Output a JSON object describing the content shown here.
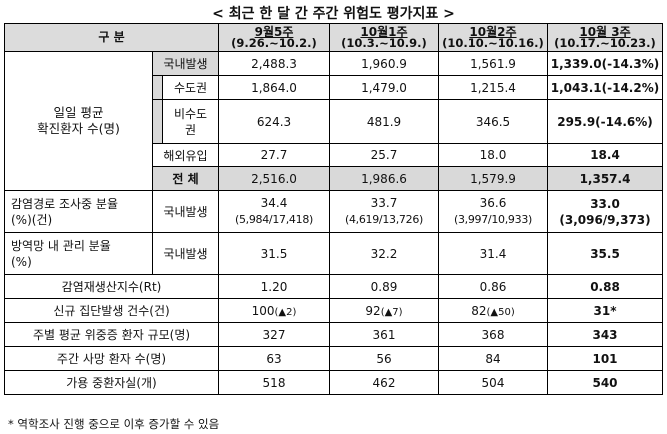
{
  "title": "< 최근 한 달 간 주간 위험도 평가지표 >",
  "header": {
    "label": "구 분",
    "weeks": [
      {
        "week": "9월5주",
        "range": "(9.26.~10.2.)"
      },
      {
        "week": "10월1주",
        "range": "(10.3.~10.9.)"
      },
      {
        "week": "10월2주",
        "range": "(10.10.~10.16.)"
      },
      {
        "week": "10월 3주",
        "range": "(10.17.~10.23.)"
      }
    ]
  },
  "daily": {
    "label_line1": "일일 평균",
    "label_line2": "확진환자 수(명)",
    "rows": [
      {
        "label": "국내발생",
        "values": [
          "2,488.3",
          "1,960.9",
          "1,561.9",
          "1,339.0(-14.3%)"
        ]
      },
      {
        "label": "수도권",
        "values": [
          "1,864.0",
          "1,479.0",
          "1,215.4",
          "1,043.1(-14.2%)"
        ]
      },
      {
        "label_line1": "비수도",
        "label_line2": "권",
        "values": [
          "624.3",
          "481.9",
          "346.5",
          "295.9(-14.6%)"
        ]
      },
      {
        "label": "해외유입",
        "values": [
          "27.7",
          "25.7",
          "18.0",
          "18.4"
        ]
      },
      {
        "label": "전 체",
        "values": [
          "2,516.0",
          "1,986.6",
          "1,579.9",
          "1,357.4"
        ]
      }
    ]
  },
  "investigation": {
    "label_line1": "감염경로 조사중 분율",
    "label_line2": "(%)(건)",
    "sub": "국내발생",
    "values": [
      {
        "pct": "34.4",
        "count": "(5,984/17,418)"
      },
      {
        "pct": "33.7",
        "count": "(4,619/13,726)"
      },
      {
        "pct": "36.6",
        "count": "(3,997/10,933)"
      },
      {
        "pct": "33.0",
        "count": "(3,096/9,373)"
      }
    ]
  },
  "managed": {
    "label_line1": "방역망 내 관리 분율",
    "label_line2": "(%)",
    "sub": "국내발생",
    "values": [
      "31.5",
      "32.2",
      "31.4",
      "35.5"
    ]
  },
  "rt": {
    "label": "감염재생산지수(Rt)",
    "values": [
      "1.20",
      "0.89",
      "0.86",
      "0.88"
    ]
  },
  "clusters": {
    "label": "신규 집단발생 건수(건)",
    "values": [
      {
        "num": "100",
        "delta": "(▲2)"
      },
      {
        "num": "92",
        "delta": "(▲7)"
      },
      {
        "num": "82",
        "delta": "(▲50)"
      },
      {
        "num": "31*",
        "delta": ""
      }
    ]
  },
  "severe": {
    "label": "주별 평균 위중증 환자 규모(명)",
    "values": [
      "327",
      "361",
      "368",
      "343"
    ]
  },
  "deaths": {
    "label": "주간 사망 환자 수(명)",
    "values": [
      "63",
      "56",
      "84",
      "101"
    ]
  },
  "beds": {
    "label": "가용 중환자실(개)",
    "values": [
      "518",
      "462",
      "504",
      "540"
    ]
  },
  "footnote": "* 역학조사 진행 중으로 이후 증가할 수 있음"
}
